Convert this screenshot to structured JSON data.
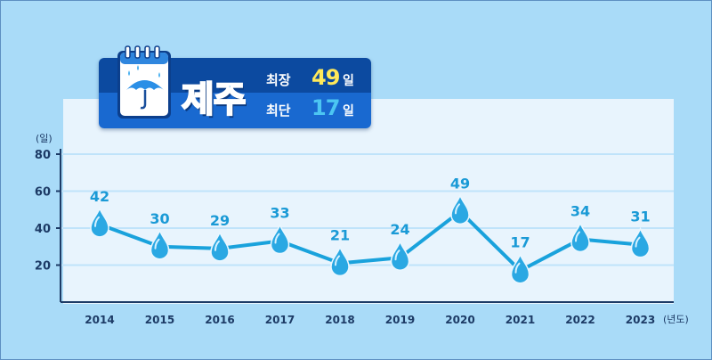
{
  "header": {
    "region": "제주",
    "max_label": "최장",
    "max_value": "49",
    "max_unit": "일",
    "min_label": "최단",
    "min_value": "17",
    "min_unit": "일"
  },
  "colors": {
    "background": "#a9dbf8",
    "plot_background": "#e8f4fd",
    "line": "#19a2dc",
    "max_value": "#ffe95a",
    "min_value": "#4cc6f2",
    "label": "#1a9ad6",
    "axis": "#1d3b66"
  },
  "chart_data": {
    "type": "line",
    "x": [
      "2014",
      "2015",
      "2016",
      "2017",
      "2018",
      "2019",
      "2020",
      "2021",
      "2022",
      "2023"
    ],
    "values": [
      42,
      30,
      29,
      33,
      21,
      24,
      49,
      17,
      34,
      31
    ],
    "y_unit": "(일)",
    "x_unit": "(년도)",
    "y_ticks": [
      "80",
      "60",
      "40",
      "20"
    ],
    "ylim": [
      0,
      80
    ],
    "grid": true,
    "marker": "water-drop"
  }
}
